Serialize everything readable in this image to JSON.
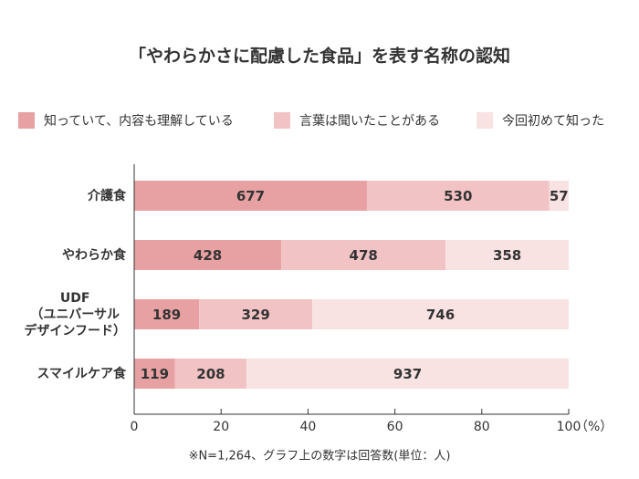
{
  "chart_data": {
    "type": "stacked_barh",
    "title": "「やわらかさに配慮した食品」を表す名称の認知",
    "categories": [
      "介護食",
      "やわらか食",
      "UDF\n（ユニバーサル\nデザインフード）",
      "スマイルケア食"
    ],
    "series": [
      {
        "name": "知っていて、内容も理解している",
        "color": "#e8a1a3",
        "values": [
          53.56,
          33.86,
          14.95,
          9.41
        ],
        "value_labels": [
          "677",
          "428",
          "189",
          "119"
        ]
      },
      {
        "name": "言葉は聞いたことがある",
        "color": "#f2c3c4",
        "values": [
          41.93,
          37.82,
          26.03,
          16.46
        ],
        "value_labels": [
          "530",
          "478",
          "329",
          "208"
        ]
      },
      {
        "name": "今回初めて知った",
        "color": "#f9e2e2",
        "values": [
          4.51,
          28.32,
          59.02,
          74.13
        ],
        "value_labels": [
          "57",
          "358",
          "746",
          "937"
        ]
      }
    ],
    "xlim": [
      0,
      100
    ],
    "xticks": [
      0,
      20,
      40,
      60,
      80,
      100
    ],
    "xlabel": "（%）",
    "note": "※N=1,264、グラフ上の数字は回答数(単位：人)"
  }
}
